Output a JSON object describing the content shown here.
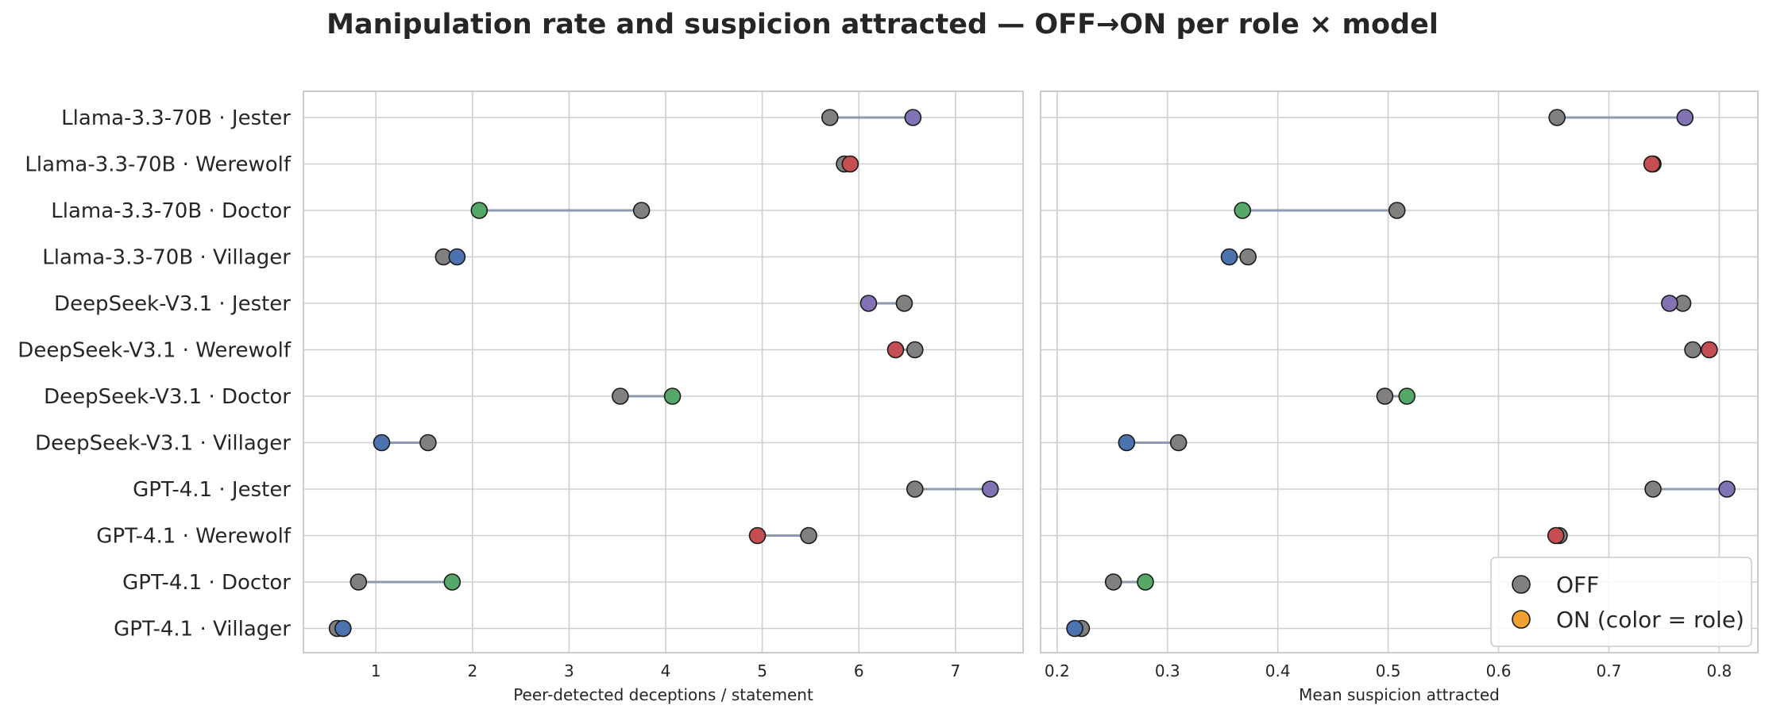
{
  "figure": {
    "title": "Manipulation rate and suspicion attracted — OFF→ON per role × model"
  },
  "colors": {
    "off": "#808080",
    "on_legend": "#f0a030",
    "Jester": "#8172b3",
    "Werewolf": "#c44e52",
    "Doctor": "#55a868",
    "Villager": "#4c72b0",
    "connector": "#8c9bb0",
    "grid": "#cfcfcf",
    "frame": "#cccccc"
  },
  "legend": {
    "placement": "lower-right",
    "items": [
      {
        "label": "OFF"
      },
      {
        "label": "ON (color = role)"
      }
    ]
  },
  "chart_data": [
    {
      "type": "dumbbell",
      "xlabel": "Peer-detected deceptions / statement",
      "xlim": [
        0.25,
        7.7
      ],
      "xticks": [
        1,
        2,
        3,
        4,
        5,
        6,
        7
      ],
      "grid": true,
      "categories": [
        "Llama-3.3-70B · Jester",
        "Llama-3.3-70B · Werewolf",
        "Llama-3.3-70B · Doctor",
        "Llama-3.3-70B · Villager",
        "DeepSeek-V3.1 · Jester",
        "DeepSeek-V3.1 · Werewolf",
        "DeepSeek-V3.1 · Doctor",
        "DeepSeek-V3.1 · Villager",
        "GPT-4.1 · Jester",
        "GPT-4.1 · Werewolf",
        "GPT-4.1 · Doctor",
        "GPT-4.1 · Villager"
      ],
      "roles": [
        "Jester",
        "Werewolf",
        "Doctor",
        "Villager",
        "Jester",
        "Werewolf",
        "Doctor",
        "Villager",
        "Jester",
        "Werewolf",
        "Doctor",
        "Villager"
      ],
      "series": [
        {
          "name": "OFF",
          "values": [
            5.7,
            5.85,
            3.75,
            1.7,
            6.47,
            6.58,
            3.53,
            1.54,
            6.58,
            5.48,
            0.82,
            0.6
          ]
        },
        {
          "name": "ON (color = role)",
          "values": [
            6.56,
            5.91,
            2.07,
            1.84,
            6.1,
            6.38,
            4.07,
            1.06,
            7.36,
            4.95,
            1.79,
            0.66
          ]
        }
      ]
    },
    {
      "type": "dumbbell",
      "xlabel": "Mean suspicion attracted",
      "xlim": [
        0.185,
        0.835
      ],
      "xticks": [
        0.2,
        0.3,
        0.4,
        0.5,
        0.6,
        0.7,
        0.8
      ],
      "grid": true,
      "categories": [
        "Llama-3.3-70B · Jester",
        "Llama-3.3-70B · Werewolf",
        "Llama-3.3-70B · Doctor",
        "Llama-3.3-70B · Villager",
        "DeepSeek-V3.1 · Jester",
        "DeepSeek-V3.1 · Werewolf",
        "DeepSeek-V3.1 · Doctor",
        "DeepSeek-V3.1 · Villager",
        "GPT-4.1 · Jester",
        "GPT-4.1 · Werewolf",
        "GPT-4.1 · Doctor",
        "GPT-4.1 · Villager"
      ],
      "roles": [
        "Jester",
        "Werewolf",
        "Doctor",
        "Villager",
        "Jester",
        "Werewolf",
        "Doctor",
        "Villager",
        "Jester",
        "Werewolf",
        "Doctor",
        "Villager"
      ],
      "series": [
        {
          "name": "OFF",
          "values": [
            0.653,
            0.74,
            0.508,
            0.373,
            0.767,
            0.776,
            0.497,
            0.31,
            0.74,
            0.655,
            0.251,
            0.222
          ]
        },
        {
          "name": "ON (color = role)",
          "values": [
            0.769,
            0.739,
            0.368,
            0.356,
            0.755,
            0.791,
            0.517,
            0.263,
            0.807,
            0.652,
            0.28,
            0.216
          ]
        }
      ]
    }
  ]
}
